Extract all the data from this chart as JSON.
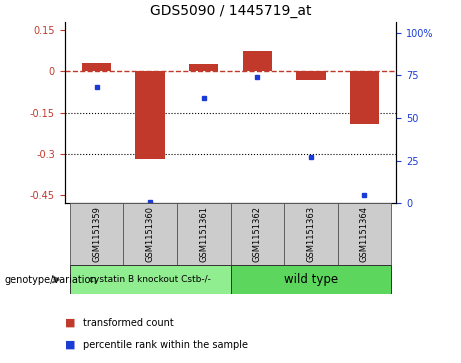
{
  "title": "GDS5090 / 1445719_at",
  "categories": [
    "GSM1151359",
    "GSM1151360",
    "GSM1151361",
    "GSM1151362",
    "GSM1151363",
    "GSM1151364"
  ],
  "bar_values": [
    0.03,
    -0.32,
    0.025,
    0.075,
    -0.03,
    -0.19
  ],
  "percentile_values": [
    68,
    1,
    62,
    74,
    27,
    5
  ],
  "ylim_left": [
    -0.48,
    0.18
  ],
  "ylim_right": [
    0,
    106.4
  ],
  "yticks_left": [
    0.15,
    0.0,
    -0.15,
    -0.3,
    -0.45
  ],
  "yticks_right": [
    100,
    75,
    50,
    25,
    0
  ],
  "bar_color": "#c0392b",
  "dot_color": "#1a3bd4",
  "dotted_lines": [
    -0.15,
    -0.3
  ],
  "group1_label": "cystatin B knockout Cstb-/-",
  "group2_label": "wild type",
  "group1_indices": [
    0,
    1,
    2
  ],
  "group2_indices": [
    3,
    4,
    5
  ],
  "group1_color": "#90ee90",
  "group2_color": "#5cd65c",
  "xlabel_left": "genotype/variation",
  "legend_red": "transformed count",
  "legend_blue": "percentile rank within the sample",
  "bar_width": 0.55,
  "tick_label_fontsize": 7,
  "title_fontsize": 10,
  "sample_label_fontsize": 6,
  "group_label_fontsize": 7,
  "legend_fontsize": 7
}
